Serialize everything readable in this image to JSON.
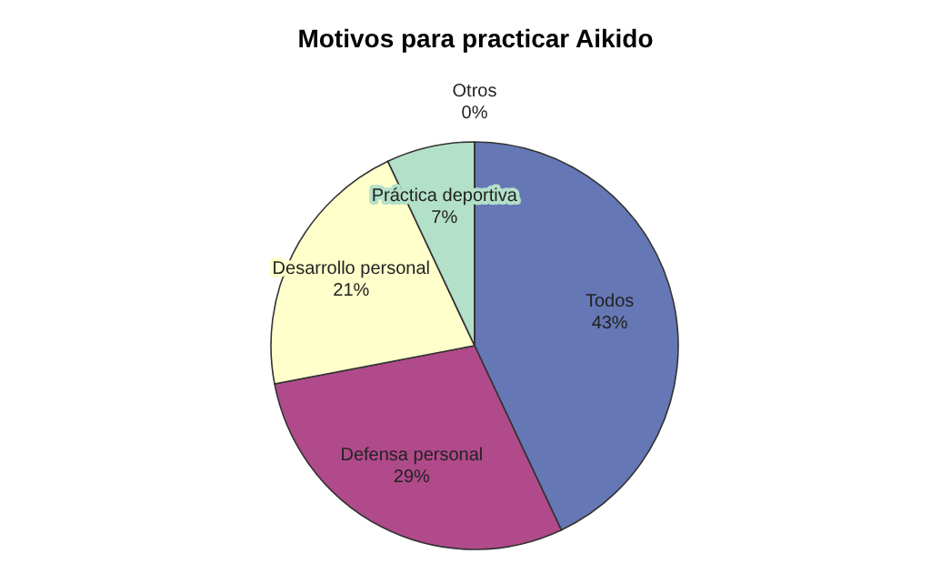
{
  "chart_data": {
    "type": "pie",
    "title": "Motivos para practicar Aikido",
    "categories": [
      "Todos",
      "Defensa personal",
      "Desarrollo personal",
      "Práctica deportiva",
      "Otros"
    ],
    "values": [
      43,
      29,
      21,
      7,
      0
    ],
    "colors": [
      "#6677b5",
      "#b04a8a",
      "#ffffcc",
      "#b3e0c8",
      "#ccffff"
    ],
    "value_labels": [
      "43%",
      "29%",
      "21%",
      "7%",
      "0%"
    ]
  }
}
